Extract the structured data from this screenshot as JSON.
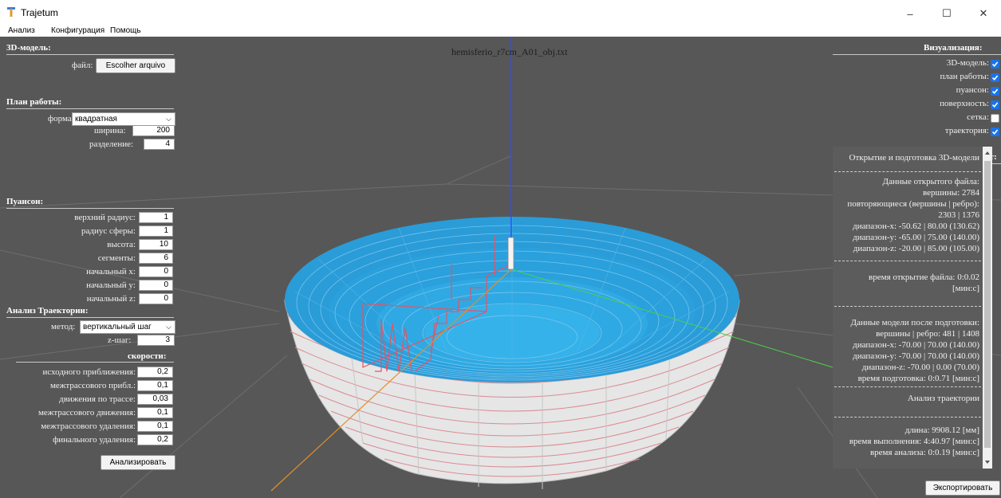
{
  "window": {
    "title": "Trajetum",
    "controls": {
      "minimize": "–",
      "maximize": "☐",
      "close": "✕"
    }
  },
  "menu": [
    "Анализ",
    "Конфигурация",
    "Помощь"
  ],
  "viewport_title": "hemisferio_r7cm_A01_obj.txt",
  "model_section": {
    "heading": "3D-модель:",
    "file_label": "файл:",
    "file_button": "Escolher arquivo"
  },
  "plan_section": {
    "heading": "План работы:",
    "form_label": "форма:",
    "form_value": "квадратная",
    "width_label": "ширина:",
    "width_value": "200",
    "division_label": "разделение:",
    "division_value": "4"
  },
  "punch_section": {
    "heading": "Пуансон:",
    "fields": [
      {
        "label": "верхний радиус:",
        "value": "1"
      },
      {
        "label": "радиус сферы:",
        "value": "1"
      },
      {
        "label": "высота:",
        "value": "10"
      },
      {
        "label": "сегменты:",
        "value": "6"
      },
      {
        "label": "начальный x:",
        "value": "0"
      },
      {
        "label": "начальный y:",
        "value": "0"
      },
      {
        "label": "начальный z:",
        "value": "0"
      }
    ]
  },
  "trajectory_section": {
    "heading": "Анализ Траектории:",
    "method_label": "метод:",
    "method_value": "вертикальный шаг",
    "zstep_label": "z-шаг:",
    "zstep_value": "3",
    "speeds_heading": "скорости:",
    "speeds": [
      {
        "label": "исходного приближения:",
        "value": "0,2"
      },
      {
        "label": "межтрассового прибл.:",
        "value": "0,1"
      },
      {
        "label": "движения по трассе:",
        "value": "0,03"
      },
      {
        "label": "межтрассового движения:",
        "value": "0,1"
      },
      {
        "label": "межтрассового удаления:",
        "value": "0,1"
      },
      {
        "label": "финального удаления:",
        "value": "0,2"
      }
    ],
    "analyze_button": "Анализировать"
  },
  "visualization": {
    "heading": "Визуализация:",
    "items": [
      {
        "label": "3D-модель:",
        "checked": true
      },
      {
        "label": "план работы:",
        "checked": true
      },
      {
        "label": "пуансон:",
        "checked": true
      },
      {
        "label": "поверхность:",
        "checked": true
      },
      {
        "label": "сетка:",
        "checked": false
      },
      {
        "label": "траектория:",
        "checked": true
      }
    ]
  },
  "report": {
    "heading": "Очёт:",
    "lines": [
      "Открытие и подготовка 3D-модели",
      "Данные открытого файла:",
      "вершины: 2784",
      "повторяющиеся (вершины | ребро):",
      "2303 | 1376",
      "диапазон-x: -50.62 | 80.00 (130.62)",
      "диапазон-y: -65.00 | 75.00 (140.00)",
      "диапазон-z: -20.00 | 85.00 (105.00)",
      "время открытие файла: 0:0.02",
      "[мин:с]",
      "Данные модели после подготовки:",
      "вершины | ребро: 481 | 1408",
      "диапазон-x: -70.00 | 70.00 (140.00)",
      "диапазон-y: -70.00 | 70.00 (140.00)",
      "диапазон-z: -70.00 | 0.00 (70.00)",
      "время подготовка: 0:0.71 [мин:с]",
      "Анализ траектории",
      "длина: 9908.12 [мм]",
      "время выполнения: 4:40.97 [мин:с]",
      "время анализа: 0:0.19 [мин:с]"
    ],
    "export_button": "Экспортировать"
  },
  "colors": {
    "viewport": "#575757",
    "surface": "#2aa0dc",
    "outer": "#e8e8e8",
    "trajectory": "#e05060",
    "checkbox": "#1a73e8"
  }
}
